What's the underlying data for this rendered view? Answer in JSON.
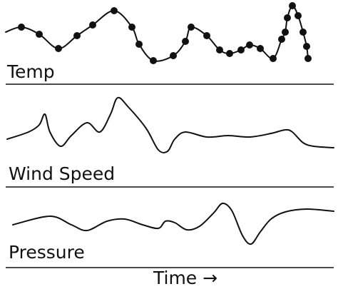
{
  "panels": [
    {
      "label": "Temp"
    },
    {
      "label": "Wind Speed"
    },
    {
      "label": "Pressure"
    }
  ],
  "x_axis_label": "Time →"
}
